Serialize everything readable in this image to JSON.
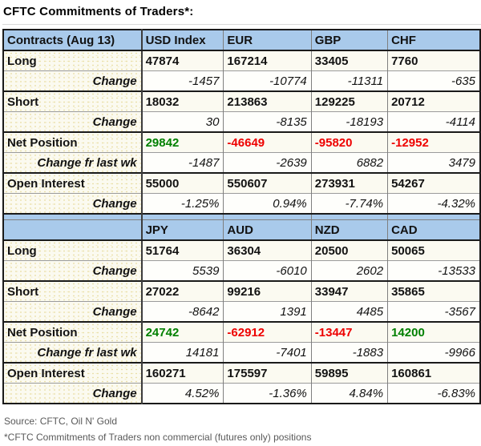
{
  "title": "CFTC Commitments of Traders*:",
  "footer": {
    "source": "Source: CFTC, Oil N' Gold",
    "note": "*CFTC Commitments of Traders non commercial (futures only) positions"
  },
  "colors": {
    "header_bg": "#a9caeb",
    "positive_value": "#008000",
    "negative_value": "#ee0000",
    "footer_text": "#595959",
    "label_cell_bg": "#fbfaf0"
  },
  "chart_data": {
    "type": "table",
    "title": "CFTC Commitments of Traders*:",
    "sections": [
      {
        "header_label": "Contracts (Aug 13)",
        "columns": [
          "USD Index",
          "EUR",
          "GBP",
          "CHF"
        ],
        "rows": [
          {
            "label": "Long",
            "type": "main",
            "values": [
              "47874",
              "167214",
              "33405",
              "7760"
            ]
          },
          {
            "label": "Change",
            "type": "change",
            "values": [
              "-1457",
              "-10774",
              "-11311",
              "-635"
            ]
          },
          {
            "label": "Short",
            "type": "main",
            "values": [
              "18032",
              "213863",
              "129225",
              "20712"
            ]
          },
          {
            "label": "Change",
            "type": "change",
            "values": [
              "30",
              "-8135",
              "-18193",
              "-4114"
            ]
          },
          {
            "label": "Net Position",
            "type": "net",
            "values": [
              "29842",
              "-46649",
              "-95820",
              "-12952"
            ],
            "colors": [
              "green",
              "red",
              "red",
              "red"
            ]
          },
          {
            "label": "Change fr last wk",
            "type": "change",
            "values": [
              "-1487",
              "-2639",
              "6882",
              "3479"
            ]
          },
          {
            "label": "Open Interest",
            "type": "main",
            "values": [
              "55000",
              "550607",
              "273931",
              "54267"
            ]
          },
          {
            "label": "Change",
            "type": "change",
            "values": [
              "-1.25%",
              "0.94%",
              "-7.74%",
              "-4.32%"
            ]
          }
        ]
      },
      {
        "header_label": "",
        "columns": [
          "JPY",
          "AUD",
          "NZD",
          "CAD"
        ],
        "rows": [
          {
            "label": "Long",
            "type": "main",
            "values": [
              "51764",
              "36304",
              "20500",
              "50065"
            ]
          },
          {
            "label": "Change",
            "type": "change",
            "values": [
              "5539",
              "-6010",
              "2602",
              "-13533"
            ]
          },
          {
            "label": "Short",
            "type": "main",
            "values": [
              "27022",
              "99216",
              "33947",
              "35865"
            ]
          },
          {
            "label": "Change",
            "type": "change",
            "values": [
              "-8642",
              "1391",
              "4485",
              "-3567"
            ]
          },
          {
            "label": "Net Position",
            "type": "net",
            "values": [
              "24742",
              "-62912",
              "-13447",
              "14200"
            ],
            "colors": [
              "green",
              "red",
              "red",
              "green"
            ]
          },
          {
            "label": "Change fr last wk",
            "type": "change",
            "values": [
              "14181",
              "-7401",
              "-1883",
              "-9966"
            ]
          },
          {
            "label": "Open Interest",
            "type": "main",
            "values": [
              "160271",
              "175597",
              "59895",
              "160861"
            ]
          },
          {
            "label": "Change",
            "type": "change",
            "values": [
              "4.52%",
              "-1.36%",
              "4.84%",
              "-6.83%"
            ]
          }
        ]
      }
    ]
  }
}
